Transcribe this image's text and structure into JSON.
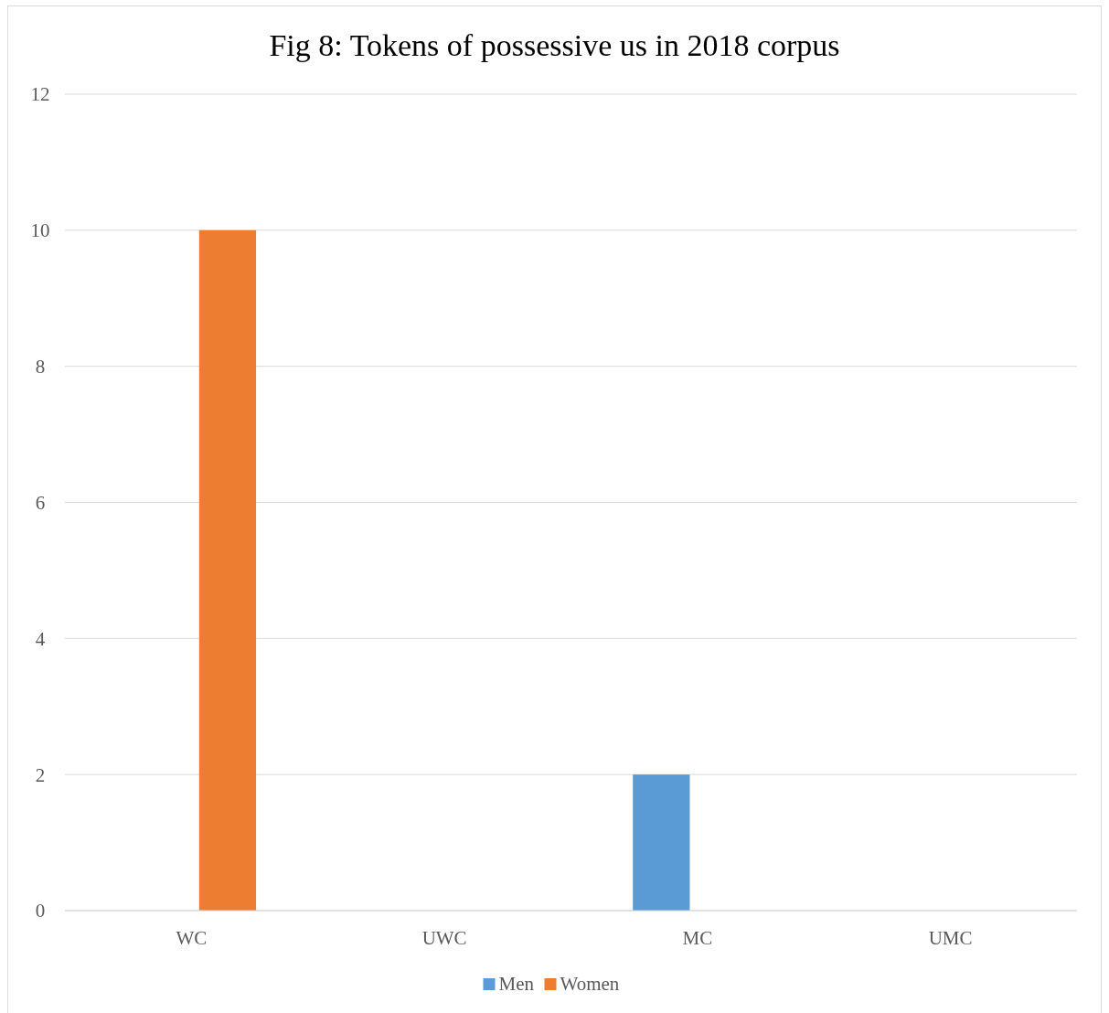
{
  "chart_data": {
    "type": "bar",
    "title": "Fig 8: Tokens of possessive us in 2018 corpus",
    "categories": [
      "WC",
      "UWC",
      "MC",
      "UMC"
    ],
    "series": [
      {
        "name": "Men",
        "color": "#5b9bd5",
        "values": [
          0,
          0,
          2,
          0
        ]
      },
      {
        "name": "Women",
        "color": "#ed7d31",
        "values": [
          10,
          0,
          0,
          0
        ]
      }
    ],
    "ylim": [
      0,
      12
    ],
    "yticks": [
      0,
      2,
      4,
      6,
      8,
      10,
      12
    ],
    "grid": "y",
    "legend": "bottom"
  }
}
